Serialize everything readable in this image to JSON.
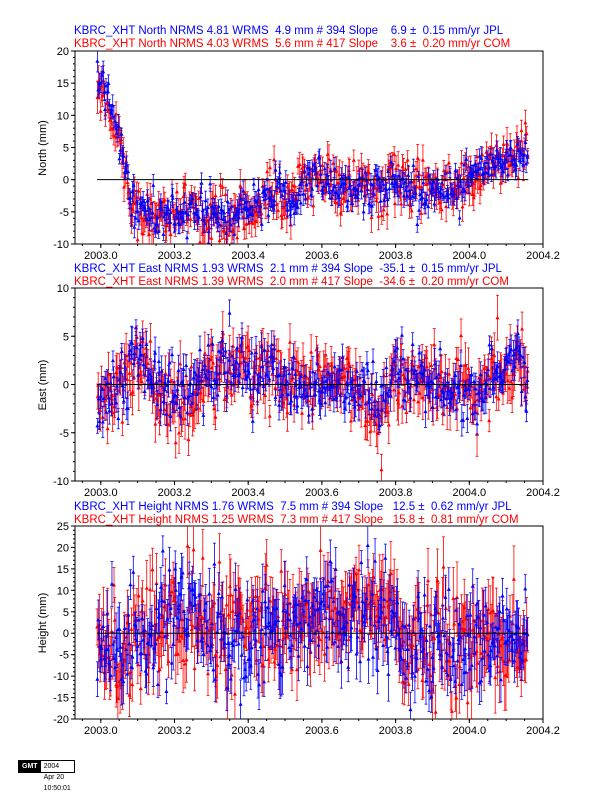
{
  "series_colors": {
    "JPL": "#0000ff",
    "COM": "#ff0000",
    "zero_line": "#000000"
  },
  "footer": {
    "logo_text": "GMT",
    "timestamp": "2004 Apr 20 10:50:01"
  },
  "chart_data": [
    {
      "type": "scatter",
      "title_lines": [
        {
          "text": "KBRC_XHT North NRMS 4.81 WRMS  4.9 mm # 394 Slope    6.9 ±  0.15 mm/yr JPL",
          "color": "#0000ff"
        },
        {
          "text": "KBRC_XHT North NRMS 4.03 WRMS  5.6 mm # 417 Slope    3.6 ±  0.20 mm/yr COM",
          "color": "#ff0000"
        }
      ],
      "xlabel": "",
      "ylabel": "North (mm)",
      "xlim": [
        2002.93,
        2004.2
      ],
      "ylim": [
        -10,
        20
      ],
      "xticks": [
        "2003.0",
        "2003.2",
        "2003.4",
        "2003.6",
        "2003.8",
        "2004.0",
        "2004.2"
      ],
      "yticks": [
        "-10",
        "-5",
        "0",
        "5",
        "10",
        "15",
        "20"
      ],
      "zero_line": [
        2002.99,
        2004.16
      ],
      "series": [
        {
          "name": "JPL",
          "color": "#0000ff",
          "count": 394,
          "x_range": [
            2002.99,
            2004.16
          ],
          "trend": [
            [
              2002.99,
              16
            ],
            [
              2003.04,
              10
            ],
            [
              2003.08,
              -3
            ],
            [
              2003.12,
              -5
            ],
            [
              2003.18,
              -6
            ],
            [
              2003.25,
              -5
            ],
            [
              2003.32,
              -6
            ],
            [
              2003.4,
              -5
            ],
            [
              2003.46,
              -2
            ],
            [
              2003.52,
              -3
            ],
            [
              2003.58,
              1
            ],
            [
              2003.65,
              -1
            ],
            [
              2003.7,
              -1
            ],
            [
              2003.76,
              -2
            ],
            [
              2003.8,
              0
            ],
            [
              2003.86,
              -2
            ],
            [
              2003.92,
              -1
            ],
            [
              2003.98,
              -1
            ],
            [
              2004.03,
              1
            ],
            [
              2004.1,
              3
            ],
            [
              2004.16,
              5
            ]
          ],
          "scatter_sd": 1.8,
          "err_bar": 1.3
        },
        {
          "name": "COM",
          "color": "#ff0000",
          "count": 417,
          "x_range": [
            2002.99,
            2004.16
          ],
          "trend": [
            [
              2002.99,
              15
            ],
            [
              2003.04,
              9
            ],
            [
              2003.08,
              -3
            ],
            [
              2003.12,
              -6
            ],
            [
              2003.18,
              -5
            ],
            [
              2003.25,
              -5
            ],
            [
              2003.32,
              -6
            ],
            [
              2003.4,
              -5
            ],
            [
              2003.46,
              -2
            ],
            [
              2003.52,
              -3
            ],
            [
              2003.58,
              1
            ],
            [
              2003.65,
              -1
            ],
            [
              2003.7,
              -1
            ],
            [
              2003.76,
              -2
            ],
            [
              2003.8,
              0
            ],
            [
              2003.86,
              -2
            ],
            [
              2003.92,
              -1
            ],
            [
              2003.98,
              -1
            ],
            [
              2004.03,
              1
            ],
            [
              2004.1,
              3
            ],
            [
              2004.16,
              5
            ]
          ],
          "scatter_sd": 2.0,
          "err_bar": 1.8
        }
      ]
    },
    {
      "type": "scatter",
      "title_lines": [
        {
          "text": "KBRC_XHT East NRMS 1.93 WRMS  2.1 mm # 394 Slope  -35.1 ±  0.15 mm/yr JPL",
          "color": "#0000ff"
        },
        {
          "text": "KBRC_XHT East NRMS 1.39 WRMS  2.0 mm # 417 Slope  -34.6 ±  0.20 mm/yr COM",
          "color": "#ff0000"
        }
      ],
      "xlabel": "",
      "ylabel": "East (mm)",
      "xlim": [
        2002.93,
        2004.2
      ],
      "ylim": [
        -10,
        10
      ],
      "xticks": [
        "2003.0",
        "2003.2",
        "2003.4",
        "2003.6",
        "2003.8",
        "2004.0",
        "2004.2"
      ],
      "yticks": [
        "-10",
        "-5",
        "0",
        "5",
        "10"
      ],
      "zero_line": [
        2002.99,
        2004.16
      ],
      "series": [
        {
          "name": "JPL",
          "color": "#0000ff",
          "count": 394,
          "x_range": [
            2002.99,
            2004.16
          ],
          "trend": [
            [
              2002.99,
              -1
            ],
            [
              2003.05,
              0
            ],
            [
              2003.1,
              4
            ],
            [
              2003.15,
              0
            ],
            [
              2003.22,
              -1
            ],
            [
              2003.3,
              1
            ],
            [
              2003.38,
              2
            ],
            [
              2003.45,
              1
            ],
            [
              2003.52,
              0
            ],
            [
              2003.6,
              0
            ],
            [
              2003.68,
              0
            ],
            [
              2003.76,
              -3
            ],
            [
              2003.8,
              1
            ],
            [
              2003.9,
              0
            ],
            [
              2004.0,
              -1
            ],
            [
              2004.08,
              1
            ],
            [
              2004.12,
              3
            ],
            [
              2004.16,
              0
            ]
          ],
          "scatter_sd": 1.7,
          "err_bar": 1.2
        },
        {
          "name": "COM",
          "color": "#ff0000",
          "count": 417,
          "x_range": [
            2002.99,
            2004.16
          ],
          "trend": [
            [
              2002.99,
              -1
            ],
            [
              2003.05,
              0
            ],
            [
              2003.1,
              3
            ],
            [
              2003.15,
              -1
            ],
            [
              2003.22,
              -2
            ],
            [
              2003.3,
              1
            ],
            [
              2003.38,
              2
            ],
            [
              2003.45,
              1
            ],
            [
              2003.52,
              0
            ],
            [
              2003.6,
              0
            ],
            [
              2003.68,
              0
            ],
            [
              2003.76,
              -3
            ],
            [
              2003.8,
              1
            ],
            [
              2003.9,
              0
            ],
            [
              2004.0,
              -1
            ],
            [
              2004.08,
              1
            ],
            [
              2004.12,
              3
            ],
            [
              2004.16,
              0
            ]
          ],
          "scatter_sd": 1.8,
          "err_bar": 1.7
        }
      ]
    },
    {
      "type": "scatter",
      "title_lines": [
        {
          "text": "KBRC_XHT Height NRMS 1.76 WRMS  7.5 mm # 394 Slope   12.5 ±  0.62 mm/yr JPL",
          "color": "#0000ff"
        },
        {
          "text": "KBRC_XHT Height NRMS 1.25 WRMS  7.3 mm # 417 Slope   15.8 ±  0.81 mm/yr COM",
          "color": "#ff0000"
        }
      ],
      "xlabel": "",
      "ylabel": "Height (mm)",
      "xlim": [
        2002.93,
        2004.2
      ],
      "ylim": [
        -20,
        25
      ],
      "xticks": [
        "2003.0",
        "2003.2",
        "2003.4",
        "2003.6",
        "2003.8",
        "2004.0",
        "2004.2"
      ],
      "yticks": [
        "-20",
        "-15",
        "-10",
        "-5",
        "0",
        "5",
        "10",
        "15",
        "20",
        "25"
      ],
      "zero_line": [
        2002.99,
        2004.16
      ],
      "series": [
        {
          "name": "JPL",
          "color": "#0000ff",
          "count": 394,
          "x_range": [
            2002.99,
            2004.16
          ],
          "trend": [
            [
              2002.99,
              -5
            ],
            [
              2003.1,
              -3
            ],
            [
              2003.2,
              4
            ],
            [
              2003.35,
              0
            ],
            [
              2003.5,
              2
            ],
            [
              2003.65,
              5
            ],
            [
              2003.78,
              6
            ],
            [
              2003.82,
              -3
            ],
            [
              2004.0,
              -3
            ],
            [
              2004.16,
              -2
            ]
          ],
          "scatter_sd": 6.0,
          "err_bar": 4.5
        },
        {
          "name": "COM",
          "color": "#ff0000",
          "count": 417,
          "x_range": [
            2002.99,
            2004.16
          ],
          "trend": [
            [
              2002.99,
              -5
            ],
            [
              2003.1,
              -2
            ],
            [
              2003.2,
              4
            ],
            [
              2003.35,
              1
            ],
            [
              2003.5,
              2
            ],
            [
              2003.65,
              5
            ],
            [
              2003.78,
              7
            ],
            [
              2003.82,
              -3
            ],
            [
              2004.0,
              -2
            ],
            [
              2004.16,
              -2
            ]
          ],
          "scatter_sd": 6.0,
          "err_bar": 6.0
        }
      ]
    }
  ]
}
